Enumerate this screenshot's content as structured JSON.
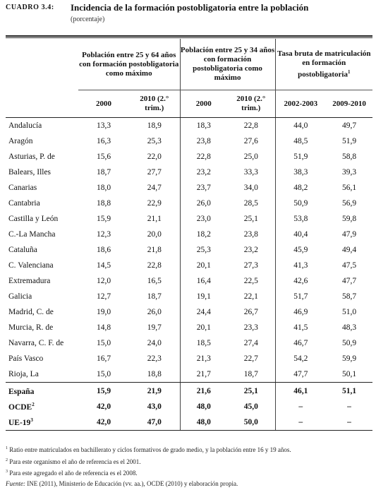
{
  "header": {
    "label": "CUADRO 3.4:",
    "title": "Incidencia de la formación postobligatoria entre la población",
    "subtitle": "(porcentaje)"
  },
  "columns": {
    "group1": "Población entre 25 y 64 años con formación postobligatoria como máximo",
    "group2": "Población entre 25 y 34 años con formación postobligatoria como máximo",
    "group3": "Tasa bruta de matriculación en formación postobligatoria",
    "group3_sup": "1",
    "years": [
      "2000",
      "2010 (2.° trim.)",
      "2000",
      "2010 (2.° trim.)",
      "2002-2003",
      "2009-2010"
    ]
  },
  "rows": [
    {
      "name": "Andalucía",
      "values": [
        "13,3",
        "18,9",
        "18,3",
        "22,8",
        "44,0",
        "49,7"
      ]
    },
    {
      "name": "Aragón",
      "values": [
        "16,3",
        "25,3",
        "23,8",
        "27,6",
        "48,5",
        "51,9"
      ]
    },
    {
      "name": "Asturias, P. de",
      "values": [
        "15,6",
        "22,0",
        "22,8",
        "25,0",
        "51,9",
        "58,8"
      ]
    },
    {
      "name": "Balears, Illes",
      "values": [
        "18,7",
        "27,7",
        "23,2",
        "33,3",
        "38,3",
        "39,3"
      ]
    },
    {
      "name": "Canarias",
      "values": [
        "18,0",
        "24,7",
        "23,7",
        "34,0",
        "48,2",
        "56,1"
      ]
    },
    {
      "name": "Cantabria",
      "values": [
        "18,8",
        "22,9",
        "26,0",
        "28,5",
        "50,9",
        "56,9"
      ]
    },
    {
      "name": "Castilla y León",
      "values": [
        "15,9",
        "21,1",
        "23,0",
        "25,1",
        "53,8",
        "59,8"
      ]
    },
    {
      "name": "C.-La Mancha",
      "values": [
        "12,3",
        "20,0",
        "18,2",
        "23,8",
        "40,4",
        "47,9"
      ]
    },
    {
      "name": "Cataluña",
      "values": [
        "18,6",
        "21,8",
        "25,3",
        "23,2",
        "45,9",
        "49,4"
      ]
    },
    {
      "name": "C. Valenciana",
      "values": [
        "14,5",
        "22,8",
        "20,1",
        "27,3",
        "41,3",
        "47,5"
      ]
    },
    {
      "name": "Extremadura",
      "values": [
        "12,0",
        "16,5",
        "16,4",
        "22,5",
        "42,6",
        "47,7"
      ]
    },
    {
      "name": "Galicia",
      "values": [
        "12,7",
        "18,7",
        "19,1",
        "22,1",
        "51,7",
        "58,7"
      ]
    },
    {
      "name": "Madrid, C. de",
      "values": [
        "19,0",
        "26,0",
        "24,4",
        "26,7",
        "46,9",
        "51,0"
      ]
    },
    {
      "name": "Murcia, R. de",
      "values": [
        "14,8",
        "19,7",
        "20,1",
        "23,3",
        "41,5",
        "48,3"
      ]
    },
    {
      "name": "Navarra, C. F. de",
      "values": [
        "15,0",
        "24,0",
        "18,5",
        "27,4",
        "46,7",
        "50,9"
      ]
    },
    {
      "name": "País Vasco",
      "values": [
        "16,7",
        "22,3",
        "21,3",
        "22,7",
        "54,2",
        "59,9"
      ]
    },
    {
      "name": "Rioja, La",
      "values": [
        "15,0",
        "18,8",
        "21,7",
        "18,7",
        "47,7",
        "50,1"
      ]
    }
  ],
  "totals": [
    {
      "name": "España",
      "sup": "",
      "values": [
        "15,9",
        "21,9",
        "21,6",
        "25,1",
        "46,1",
        "51,1"
      ]
    },
    {
      "name": "OCDE",
      "sup": "2",
      "values": [
        "42,0",
        "43,0",
        "48,0",
        "45,0",
        "–",
        "–"
      ]
    },
    {
      "name": "UE-19",
      "sup": "3",
      "values": [
        "42,0",
        "47,0",
        "48,0",
        "50,0",
        "–",
        "–"
      ]
    }
  ],
  "notes": [
    {
      "sup": "1",
      "text": " Ratio entre matriculados en bachillerato y ciclos formativos de grado medio, y la población entre 16 y 19 años."
    },
    {
      "sup": "2",
      "text": " Para este organismo el año de referencia es el 2001."
    },
    {
      "sup": "3",
      "text": " Para este agregado el año de referencia es el 2008."
    }
  ],
  "source": {
    "label": "Fuente:",
    "text": " INE (2011), Ministerio de Educación (vv. aa.), OCDE (2010) y elaboración propia."
  }
}
